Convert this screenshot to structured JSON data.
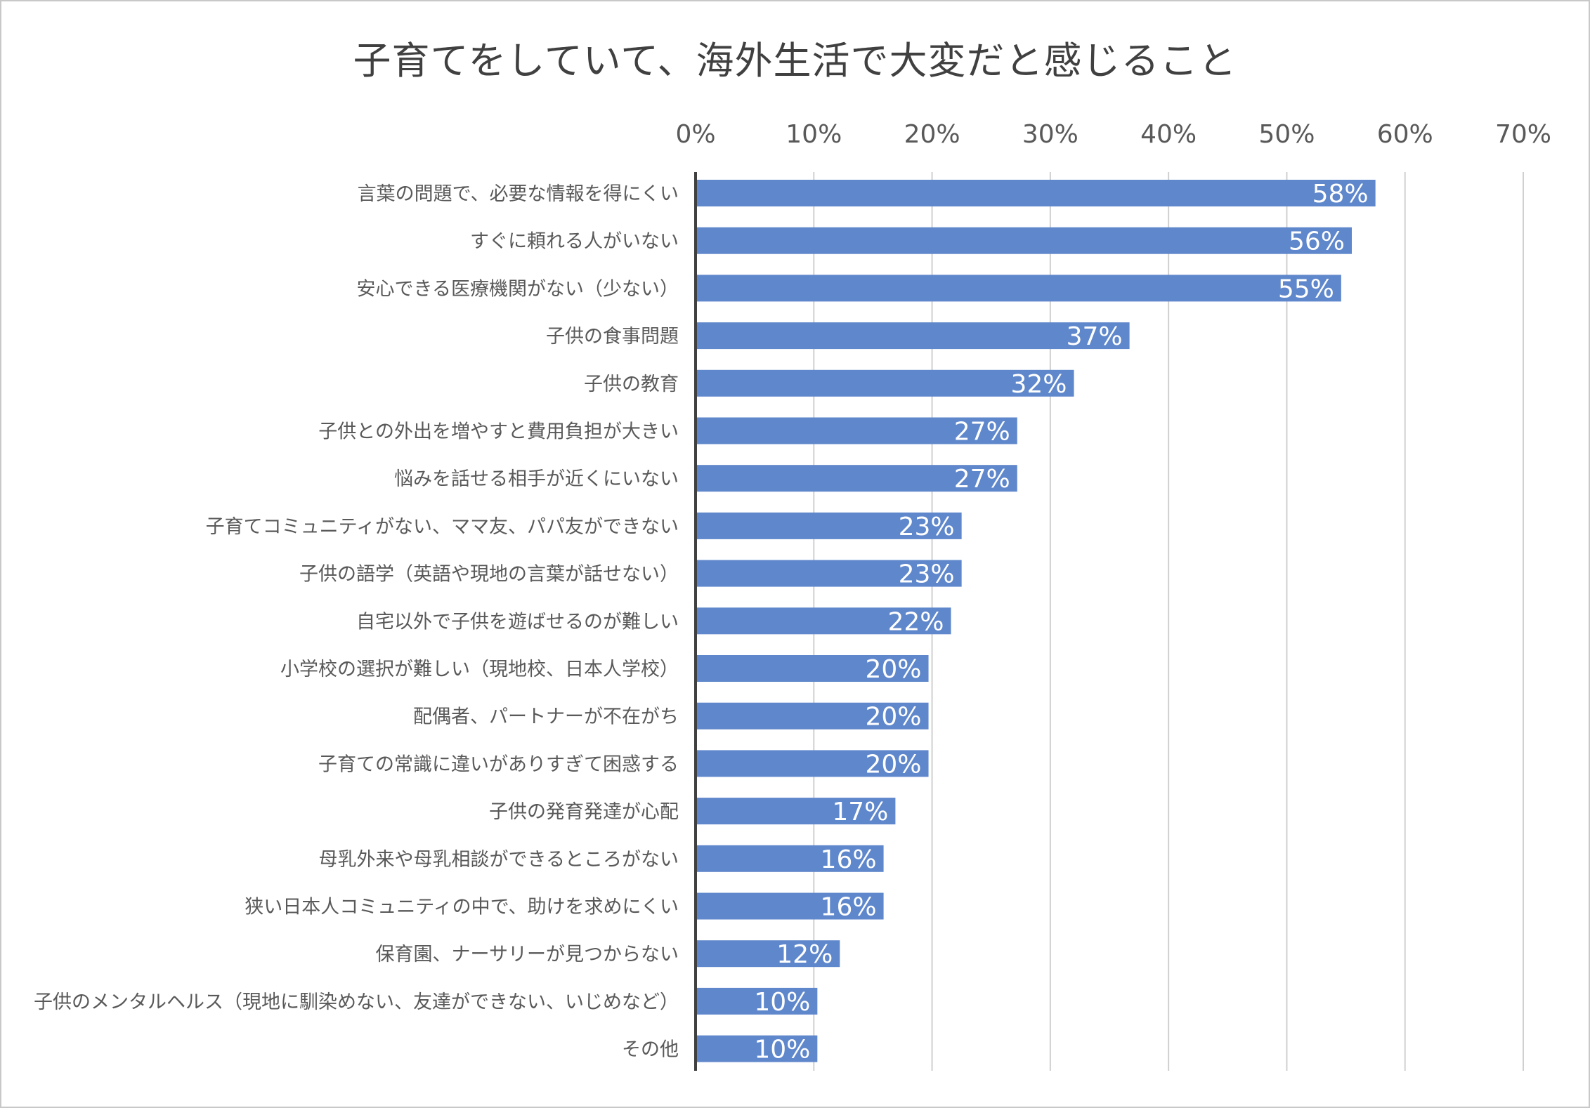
{
  "chart_data": {
    "type": "bar",
    "orientation": "horizontal",
    "title": "子育てをしていて、海外生活で大変だと感じること",
    "xlim": [
      0,
      70
    ],
    "x_ticks": [
      "0%",
      "10%",
      "20%",
      "30%",
      "40%",
      "50%",
      "60%",
      "70%"
    ],
    "x_tick_values": [
      0,
      10,
      20,
      30,
      40,
      50,
      60,
      70
    ],
    "x_axis_position": "top",
    "grid": true,
    "legend": "none",
    "categories": [
      "言葉の問題で、必要な情報を得にくい",
      "すぐに頼れる人がいない",
      "安心できる医療機関がない（少ない）",
      "子供の食事問題",
      "子供の教育",
      "子供との外出を増やすと費用負担が大きい",
      "悩みを話せる相手が近くにいない",
      "子育てコミュニティがない、ママ友、パパ友ができない",
      "子供の語学（英語や現地の言葉が話せない）",
      "自宅以外で子供を遊ばせるのが難しい",
      "小学校の選択が難しい（現地校、日本人学校）",
      "配偶者、パートナーが不在がち",
      "子育ての常識に違いがありすぎて困惑する",
      "子供の発育発達が心配",
      "母乳外来や母乳相談ができるところがない",
      "狭い日本人コミュニティの中で、助けを求めにくい",
      "保育園、ナーサリーが見つからない",
      "子供のメンタルヘルス（現地に馴染めない、友達ができない、いじめなど）",
      "その他"
    ],
    "values": [
      57.5,
      55.5,
      54.6,
      36.7,
      32.0,
      27.2,
      27.2,
      22.5,
      22.5,
      21.6,
      19.7,
      19.7,
      19.7,
      16.9,
      15.9,
      15.9,
      12.2,
      10.3,
      10.3
    ],
    "data_labels": [
      "58%",
      "56%",
      "55%",
      "37%",
      "32%",
      "27%",
      "27%",
      "23%",
      "23%",
      "22%",
      "20%",
      "20%",
      "20%",
      "17%",
      "16%",
      "16%",
      "12%",
      "10%",
      "10%"
    ],
    "colors": {
      "bar": "#5f87cb",
      "data_label": "#ffffff",
      "category_label": "#595959",
      "tick_label": "#595959",
      "gridline": "#d0d0d0",
      "axis": "#404040",
      "title": "#404040"
    }
  }
}
